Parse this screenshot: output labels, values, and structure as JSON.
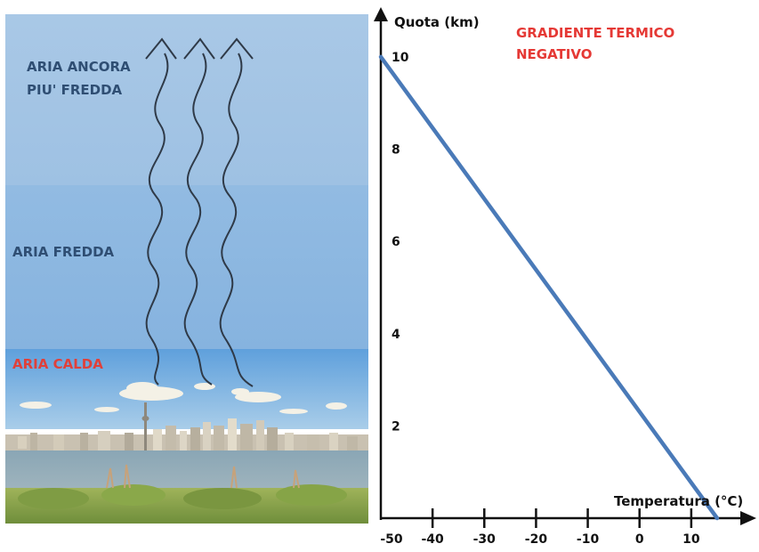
{
  "left_panel": {
    "labels": {
      "top_line1": "ARIA ANCORA",
      "top_line2": "PIU' FREDDA",
      "middle": "ARIA FREDDA",
      "bottom": "ARIA CALDA"
    },
    "colors": {
      "sky_top": "#a6c6e4",
      "sky_mid": "#8fb9e0",
      "sky_low": "#6fa8dc",
      "label_dark": "#2f4e73",
      "label_warm": "#e0403a",
      "arrow": "#2f3a48"
    },
    "icons": [
      "wavy-arrow-icon",
      "wavy-arrow-icon",
      "wavy-arrow-icon",
      "city-skyline-icon"
    ]
  },
  "chart_data": {
    "type": "line",
    "title": "GRADIENTE TERMICO NEGATIVO",
    "title_line1": "GRADIENTE TERMICO",
    "title_line2": "NEGATIVO",
    "xlabel": "Temperatura (°C)",
    "ylabel": "Quota (km)",
    "x_ticks": [
      -50,
      -40,
      -30,
      -20,
      -10,
      0,
      10
    ],
    "y_ticks": [
      2,
      4,
      6,
      8,
      10
    ],
    "xlim": [
      -50,
      20
    ],
    "ylim": [
      0,
      10.5
    ],
    "series": [
      {
        "x": [
          -50,
          15
        ],
        "y": [
          10,
          0
        ]
      }
    ],
    "colors": {
      "line": "#4a7ab8",
      "title": "#e53935",
      "axis": "#111111"
    }
  }
}
